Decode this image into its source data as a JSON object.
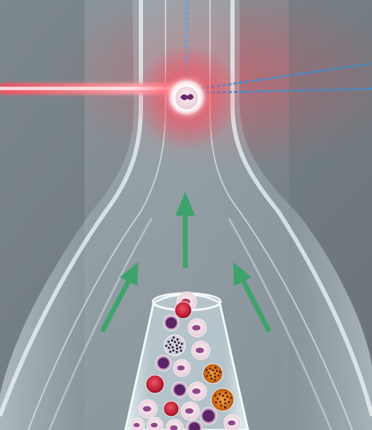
{
  "illustration": {
    "subject": "flow-cytometry-hydrodynamic-focusing",
    "colors": {
      "background": "#7f8a90",
      "glass": "#dfeef3",
      "laser": "#ff3d4f",
      "detector_line": "#3d8fd6",
      "flow_arrow": "#3ea36b",
      "rbc": "#c8243a",
      "cell_pale": "#f2dfe6",
      "nucleus": "#7a2b78",
      "granulocyte": "#d86f15"
    },
    "flow_arrows": [
      {
        "id": "center",
        "direction": "up"
      },
      {
        "id": "left",
        "direction": "up-right"
      },
      {
        "id": "right",
        "direction": "up-left"
      }
    ],
    "cell_types": [
      "erythrocyte",
      "neutrophil",
      "lymphocyte",
      "monocyte",
      "eosinophil",
      "basophil"
    ],
    "cell_count_visible": 22
  }
}
